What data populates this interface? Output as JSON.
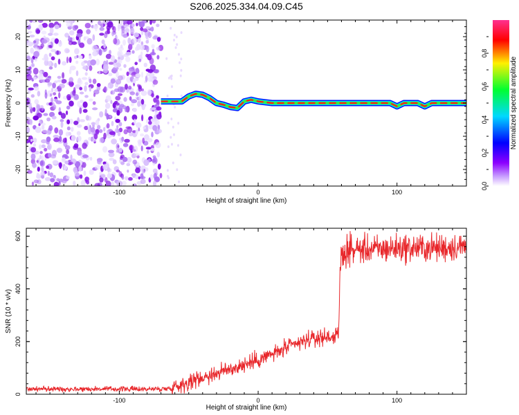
{
  "title": "S206.2025.334.04.09.C45",
  "colors": {
    "snr_line": "#e8262a",
    "noise": "#8c1ee8",
    "colormap": [
      "#ffffff",
      "#8c00ff",
      "#0000ff",
      "#00d8ff",
      "#00ff30",
      "#fff000",
      "#ff0000",
      "#ff3090"
    ]
  },
  "chart_data": [
    {
      "type": "heatmap",
      "xlabel": "Height of straight line (km)",
      "ylabel": "Frequency (Hz)",
      "xlim": [
        -167,
        150
      ],
      "ylim": [
        -25,
        25
      ],
      "xticks": [
        -100,
        0,
        100
      ],
      "yticks": [
        -20,
        -10,
        0,
        10,
        20
      ],
      "colorbar": {
        "label": "Normalized spectral amplitude",
        "range": [
          0,
          1
        ],
        "ticks": [
          "0.0",
          "0.2",
          "0.4",
          "0.6",
          "0.8"
        ]
      },
      "noise_region_x": [
        -167,
        -70
      ],
      "signal_start_x": -70,
      "signal_frequency_track": {
        "x": [
          -70,
          -65,
          -60,
          -55,
          -50,
          -45,
          -40,
          -35,
          -30,
          -25,
          -20,
          -15,
          -10,
          -5,
          0,
          10,
          20,
          40,
          60,
          80,
          95,
          100,
          105,
          115,
          120,
          125,
          140,
          150
        ],
        "y": [
          0.5,
          0.5,
          0.5,
          0.5,
          2.0,
          2.8,
          2.5,
          1.5,
          0.0,
          -0.5,
          -1.2,
          -1.5,
          0.5,
          1.0,
          0.5,
          0.0,
          0.0,
          0.0,
          0.0,
          0.0,
          0.0,
          -1.0,
          0.0,
          0.0,
          -1.0,
          0.0,
          0.0,
          0.0
        ]
      }
    },
    {
      "type": "line",
      "xlabel": "Height of straight line (km)",
      "ylabel": "SNR (10 * v/v)",
      "xlim": [
        -167,
        150
      ],
      "ylim": [
        0,
        630
      ],
      "xticks": [
        -100,
        0,
        100
      ],
      "yticks": [
        0,
        200,
        400,
        600
      ],
      "series": [
        {
          "x": [
            -167,
            -150,
            -130,
            -110,
            -90,
            -70,
            -64,
            -60,
            -55,
            -50,
            -45,
            -40,
            -35,
            -30,
            -25,
            -20,
            -15,
            -10,
            -5,
            0,
            5,
            10,
            15,
            20,
            25,
            30,
            35,
            40,
            45,
            50,
            55,
            57,
            58,
            59,
            60,
            62,
            65,
            70,
            80,
            90,
            100,
            110,
            120,
            130,
            140,
            150
          ],
          "values": [
            20,
            20,
            20,
            20,
            20,
            20,
            22,
            30,
            38,
            45,
            55,
            65,
            72,
            80,
            88,
            96,
            104,
            112,
            122,
            130,
            142,
            152,
            162,
            175,
            185,
            195,
            205,
            210,
            215,
            218,
            220,
            220,
            225,
            480,
            520,
            540,
            545,
            550,
            550,
            550,
            555,
            555,
            555,
            555,
            558,
            560
          ]
        }
      ]
    }
  ]
}
